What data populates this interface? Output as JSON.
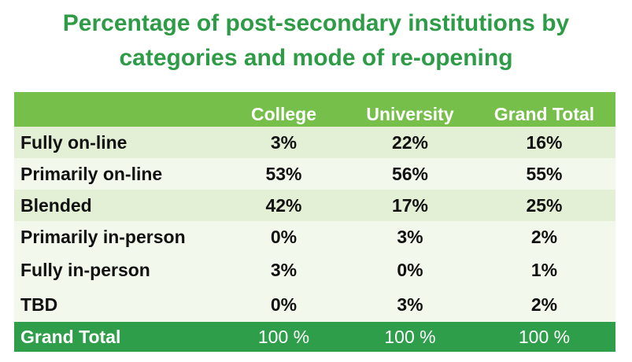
{
  "title": {
    "line1": "Percentage of post-secondary institutions by",
    "line2": "categories and mode of re-opening"
  },
  "colors": {
    "title": "#2e9b47",
    "header_bg": "#75bf4a",
    "row_dark": "#e3f0d5",
    "row_light": "#f3f8ec",
    "total_bg": "#2f9e4a"
  },
  "chart_data": {
    "type": "table",
    "title": "Percentage of post-secondary institutions by categories and mode of re-opening",
    "columns": [
      "",
      "College",
      "University",
      "Grand Total"
    ],
    "rows": [
      {
        "label": "Fully on-line",
        "college": "3%",
        "university": "22%",
        "total": "16%"
      },
      {
        "label": "Primarily on-line",
        "college": "53%",
        "university": "56%",
        "total": "55%"
      },
      {
        "label": "Blended",
        "college": "42%",
        "university": "17%",
        "total": "25%"
      },
      {
        "label": "Primarily in-person",
        "college": "0%",
        "university": "3%",
        "total": "2%"
      },
      {
        "label": "Fully in-person",
        "college": "3%",
        "university": "0%",
        "total": "1%"
      },
      {
        "label": "TBD",
        "college": "0%",
        "university": "3%",
        "total": "2%"
      }
    ],
    "grand_total": {
      "label": "Grand Total",
      "college": "100 %",
      "university": "100 %",
      "total": "100 %"
    }
  }
}
